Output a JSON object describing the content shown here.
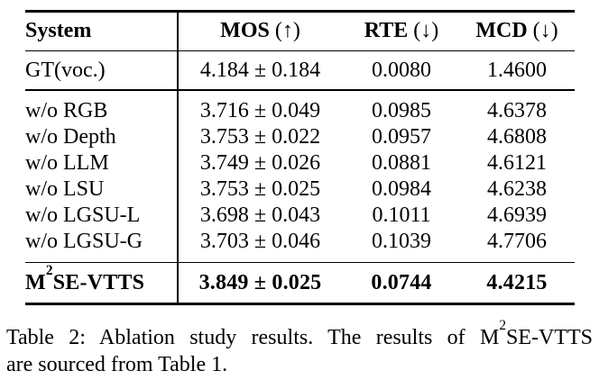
{
  "colors": {
    "text": "#000000",
    "background": "#ffffff"
  },
  "table": {
    "header": {
      "system_label": "System",
      "mos_label": "MOS",
      "mos_dir": "(↑)",
      "rte_label": "RTE",
      "rte_dir": "(↓)",
      "mcd_label": "MCD",
      "mcd_dir": "(↓)"
    },
    "gt_row": {
      "system": "GT(voc.)",
      "mos": "4.184 ± 0.184",
      "rte": "0.0080",
      "mcd": "1.4600"
    },
    "ablation_rows": [
      {
        "system": "w/o RGB",
        "mos": "3.716 ± 0.049",
        "rte": "0.0985",
        "mcd": "4.6378"
      },
      {
        "system": "w/o Depth",
        "mos": "3.753 ± 0.022",
        "rte": "0.0957",
        "mcd": "4.6808"
      },
      {
        "system": "w/o LLM",
        "mos": "3.749 ± 0.026",
        "rte": "0.0881",
        "mcd": "4.6121"
      },
      {
        "system": "w/o LSU",
        "mos": "3.753 ± 0.025",
        "rte": "0.0984",
        "mcd": "4.6238"
      },
      {
        "system": "w/o LGSU-L",
        "mos": "3.698 ± 0.043",
        "rte": "0.1011",
        "mcd": "4.6939"
      },
      {
        "system": "w/o LGSU-G",
        "mos": "3.703 ± 0.046",
        "rte": "0.1039",
        "mcd": "4.7706"
      }
    ],
    "final_row": {
      "system_base": "M",
      "system_sup": "2",
      "system_rest": "SE-VTTS",
      "mos": "3.849 ± 0.025",
      "rte": "0.0744",
      "mcd": "4.4215"
    }
  },
  "caption": {
    "line1_part1": "Table 2: Ablation study results. The results of M",
    "line1_sup": "2",
    "line1_part2": "SE-VTTS",
    "line2": "are sourced from Table 1."
  }
}
